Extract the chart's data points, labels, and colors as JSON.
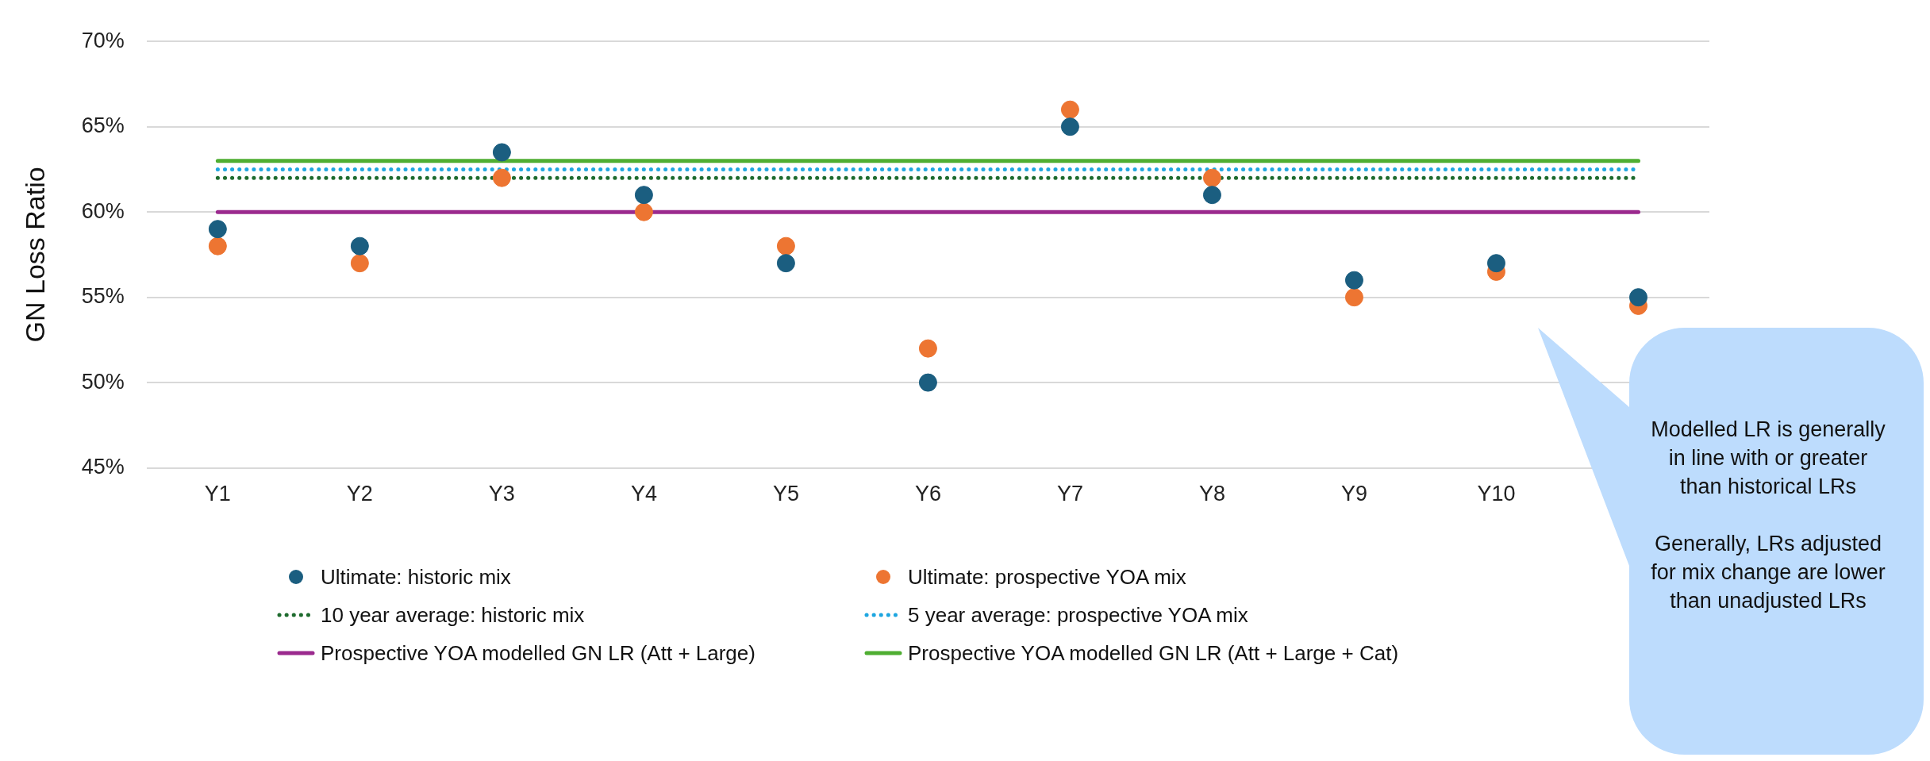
{
  "chart_data": {
    "type": "scatter",
    "ylabel": "GN Loss Ratio",
    "categories": [
      "Y1",
      "Y2",
      "Y3",
      "Y4",
      "Y5",
      "Y6",
      "Y7",
      "Y8",
      "Y9",
      "Y10",
      null
    ],
    "series": [
      {
        "name": "Ultimate: historic mix",
        "type": "scatter",
        "marker": "circle",
        "color": "#1b5e80",
        "values": [
          59,
          58,
          63.5,
          61,
          57,
          50,
          65,
          61,
          56,
          57,
          55
        ]
      },
      {
        "name": "Ultimate: prospective YOA mix",
        "type": "scatter",
        "marker": "circle",
        "color": "#ed7532",
        "values": [
          58,
          57,
          62,
          60,
          58,
          52,
          66,
          62,
          55,
          56.5,
          54.5
        ]
      },
      {
        "name": "10 year average: historic mix",
        "type": "line",
        "line_style": "dotted",
        "marker": "none",
        "color": "#1e6b2e",
        "values": [
          62,
          62,
          62,
          62,
          62,
          62,
          62,
          62,
          62,
          62,
          62
        ]
      },
      {
        "name": "5 year average: prospective YOA mix",
        "type": "line",
        "line_style": "dotted",
        "marker": "none",
        "color": "#1ea6e0",
        "values": [
          62.5,
          62.5,
          62.5,
          62.5,
          62.5,
          62.5,
          62.5,
          62.5,
          62.5,
          62.5,
          62.5
        ]
      },
      {
        "name": "Prospective YOA modelled GN LR (Att + Large)",
        "type": "line",
        "line_style": "solid",
        "marker": "none",
        "color": "#9b2a8e",
        "values": [
          60,
          60,
          60,
          60,
          60,
          60,
          60,
          60,
          60,
          60,
          60
        ]
      },
      {
        "name": "Prospective YOA modelled GN LR (Att + Large + Cat)",
        "type": "line",
        "line_style": "solid",
        "marker": "none",
        "color": "#4fae32",
        "values": [
          63,
          63,
          63,
          63,
          63,
          63,
          63,
          63,
          63,
          63,
          63
        ]
      }
    ],
    "ylim": [
      45,
      70
    ],
    "yticks": [
      {
        "value": 45,
        "label": "45%"
      },
      {
        "value": 50,
        "label": "50%"
      },
      {
        "value": 55,
        "label": "55%"
      },
      {
        "value": 60,
        "label": "60%"
      },
      {
        "value": 65,
        "label": "65%"
      },
      {
        "value": 70,
        "label": "70%"
      }
    ],
    "grid": "y",
    "legend": "bottom",
    "annotations": [
      "Modelled LR is generally in line with or greater than historical LRs",
      "Generally, LRs adjusted for mix change are lower than unadjusted LRs"
    ]
  }
}
